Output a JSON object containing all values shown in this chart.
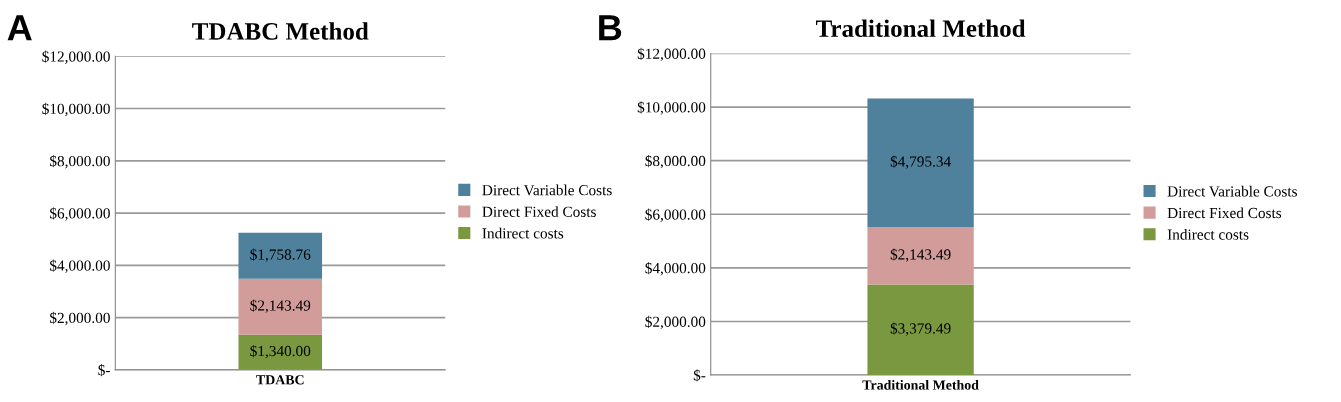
{
  "chart_data": [
    {
      "type": "bar",
      "title": "TDABC Method",
      "annotations": [
        "A"
      ],
      "categories": [
        "TDABC"
      ],
      "stacked": true,
      "legend": "right",
      "grid": "y",
      "ylim": [
        0,
        12000
      ],
      "yticks": [
        {
          "value": 0,
          "label": "$-"
        },
        {
          "value": 2000,
          "label": "$2,000.00"
        },
        {
          "value": 4000,
          "label": "$4,000.00"
        },
        {
          "value": 6000,
          "label": "$6,000.00"
        },
        {
          "value": 8000,
          "label": "$8,000.00"
        },
        {
          "value": 10000,
          "label": "$10,000.00"
        },
        {
          "value": 12000,
          "label": "$12,000.00"
        }
      ],
      "series": [
        {
          "name": "Indirect costs",
          "color": "#7a983f",
          "values": [
            1340.0
          ],
          "value_labels": [
            "$1,340.00"
          ]
        },
        {
          "name": "Direct Fixed Costs",
          "color": "#d19c9a",
          "values": [
            2143.49
          ],
          "value_labels": [
            "$2,143.49"
          ]
        },
        {
          "name": "Direct Variable Costs",
          "color": "#4f809c",
          "values": [
            1758.76
          ],
          "value_labels": [
            "$1,758.76"
          ]
        }
      ]
    },
    {
      "type": "bar",
      "title": "Traditional Method",
      "annotations": [
        "B"
      ],
      "categories": [
        "Traditional Method"
      ],
      "stacked": true,
      "legend": "right",
      "grid": "y",
      "ylim": [
        0,
        12000
      ],
      "yticks": [
        {
          "value": 0,
          "label": "$-"
        },
        {
          "value": 2000,
          "label": "$2,000.00"
        },
        {
          "value": 4000,
          "label": "$4,000.00"
        },
        {
          "value": 6000,
          "label": "$6,000.00"
        },
        {
          "value": 8000,
          "label": "$8,000.00"
        },
        {
          "value": 10000,
          "label": "$10,000.00"
        },
        {
          "value": 12000,
          "label": "$12,000.00"
        }
      ],
      "series": [
        {
          "name": "Indirect costs",
          "color": "#7a983f",
          "values": [
            3379.49
          ],
          "value_labels": [
            "$3,379.49"
          ]
        },
        {
          "name": "Direct Fixed Costs",
          "color": "#d19c9a",
          "values": [
            2143.49
          ],
          "value_labels": [
            "$2,143.49"
          ]
        },
        {
          "name": "Direct Variable Costs",
          "color": "#4f809c",
          "values": [
            4795.34
          ],
          "value_labels": [
            "$4,795.34"
          ]
        }
      ]
    }
  ]
}
